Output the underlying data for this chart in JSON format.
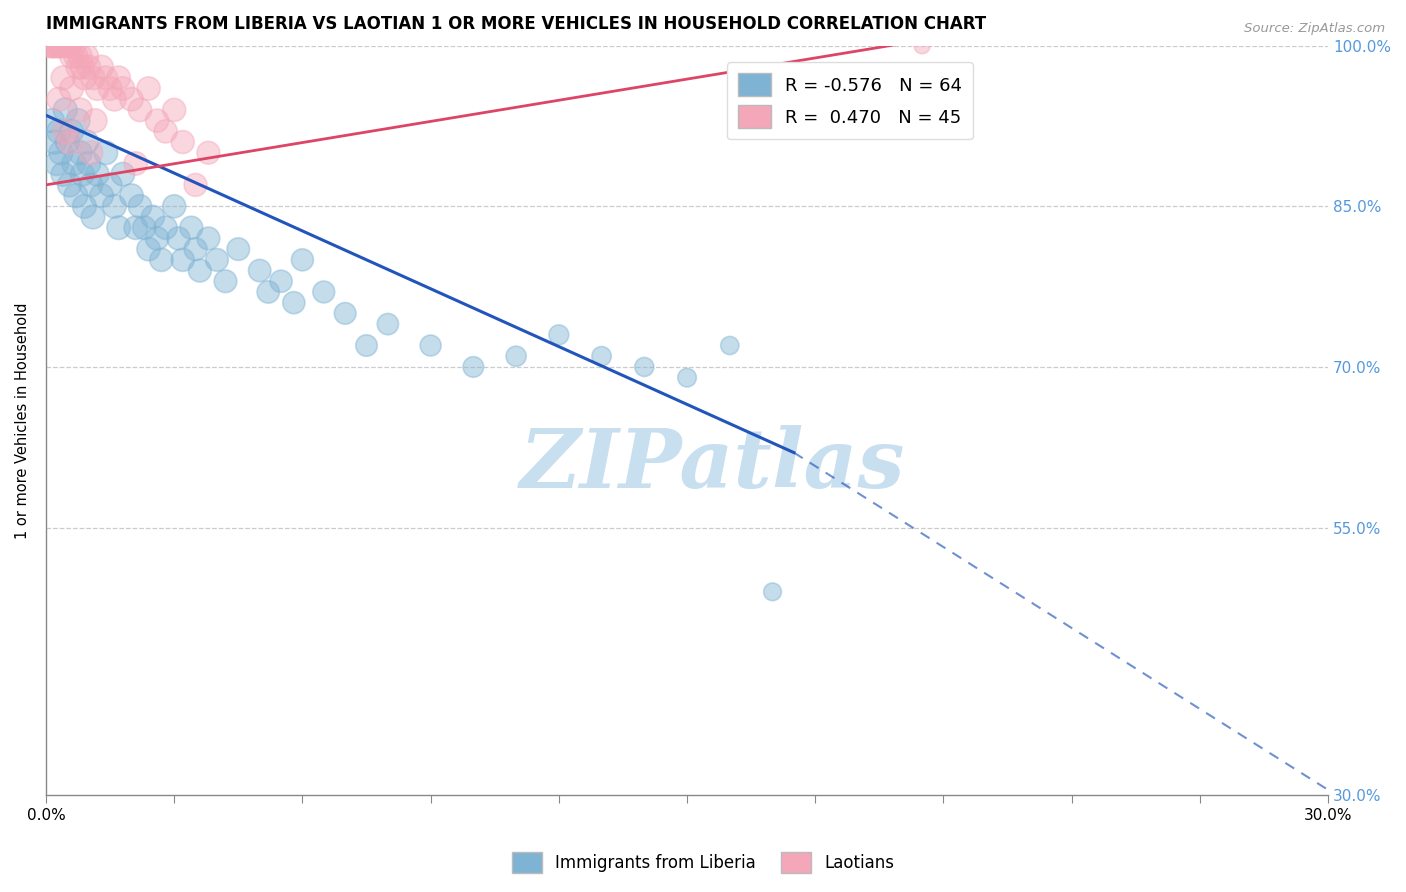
{
  "title": "IMMIGRANTS FROM LIBERIA VS LAOTIAN 1 OR MORE VEHICLES IN HOUSEHOLD CORRELATION CHART",
  "source": "Source: ZipAtlas.com",
  "ylabel": "1 or more Vehicles in Household",
  "xlim": [
    0.0,
    30.0
  ],
  "ylim": [
    30.0,
    100.0
  ],
  "xticks": [
    0.0,
    3.0,
    6.0,
    9.0,
    12.0,
    15.0,
    18.0,
    21.0,
    24.0,
    27.0,
    30.0
  ],
  "xtick_labels_show": {
    "0.0": "0.0%",
    "30.0": "30.0%"
  },
  "ytick_vals": [
    30.0,
    55.0,
    70.0,
    85.0,
    100.0
  ],
  "ytick_labels": [
    "30.0%",
    "55.0%",
    "70.0%",
    "85.0%",
    "100.0%"
  ],
  "legend_blue_label": "Immigrants from Liberia",
  "legend_pink_label": "Laotians",
  "R_blue": -0.576,
  "N_blue": 64,
  "R_pink": 0.47,
  "N_pink": 45,
  "blue_color": "#7fb3d3",
  "pink_color": "#f4a7b9",
  "blue_line_color": "#2255bb",
  "pink_line_color": "#dd4466",
  "watermark_color": "#c8dff0",
  "blue_scatter": [
    [
      0.15,
      93
    ],
    [
      0.2,
      91
    ],
    [
      0.25,
      89
    ],
    [
      0.3,
      92
    ],
    [
      0.35,
      90
    ],
    [
      0.4,
      88
    ],
    [
      0.45,
      94
    ],
    [
      0.5,
      91
    ],
    [
      0.55,
      87
    ],
    [
      0.6,
      92
    ],
    [
      0.65,
      89
    ],
    [
      0.7,
      86
    ],
    [
      0.75,
      93
    ],
    [
      0.8,
      90
    ],
    [
      0.85,
      88
    ],
    [
      0.9,
      85
    ],
    [
      0.95,
      91
    ],
    [
      1.0,
      89
    ],
    [
      1.05,
      87
    ],
    [
      1.1,
      84
    ],
    [
      1.2,
      88
    ],
    [
      1.3,
      86
    ],
    [
      1.4,
      90
    ],
    [
      1.5,
      87
    ],
    [
      1.6,
      85
    ],
    [
      1.7,
      83
    ],
    [
      1.8,
      88
    ],
    [
      2.0,
      86
    ],
    [
      2.1,
      83
    ],
    [
      2.2,
      85
    ],
    [
      2.3,
      83
    ],
    [
      2.4,
      81
    ],
    [
      2.5,
      84
    ],
    [
      2.6,
      82
    ],
    [
      2.7,
      80
    ],
    [
      2.8,
      83
    ],
    [
      3.0,
      85
    ],
    [
      3.1,
      82
    ],
    [
      3.2,
      80
    ],
    [
      3.4,
      83
    ],
    [
      3.5,
      81
    ],
    [
      3.6,
      79
    ],
    [
      3.8,
      82
    ],
    [
      4.0,
      80
    ],
    [
      4.2,
      78
    ],
    [
      4.5,
      81
    ],
    [
      5.0,
      79
    ],
    [
      5.2,
      77
    ],
    [
      5.5,
      78
    ],
    [
      5.8,
      76
    ],
    [
      6.0,
      80
    ],
    [
      6.5,
      77
    ],
    [
      7.0,
      75
    ],
    [
      7.5,
      72
    ],
    [
      8.0,
      74
    ],
    [
      9.0,
      72
    ],
    [
      10.0,
      70
    ],
    [
      11.0,
      71
    ],
    [
      12.0,
      73
    ],
    [
      13.0,
      71
    ],
    [
      14.0,
      70
    ],
    [
      15.0,
      69
    ],
    [
      16.0,
      72
    ],
    [
      17.0,
      49
    ]
  ],
  "pink_scatter": [
    [
      0.1,
      100
    ],
    [
      0.15,
      100
    ],
    [
      0.2,
      100
    ],
    [
      0.25,
      100
    ],
    [
      0.3,
      100
    ],
    [
      0.35,
      100
    ],
    [
      0.4,
      100
    ],
    [
      0.5,
      100
    ],
    [
      0.55,
      100
    ],
    [
      0.6,
      99
    ],
    [
      0.65,
      100
    ],
    [
      0.7,
      99
    ],
    [
      0.75,
      98
    ],
    [
      0.8,
      99
    ],
    [
      0.85,
      98
    ],
    [
      0.9,
      97
    ],
    [
      0.95,
      99
    ],
    [
      1.0,
      98
    ],
    [
      1.1,
      97
    ],
    [
      1.2,
      96
    ],
    [
      1.3,
      98
    ],
    [
      1.4,
      97
    ],
    [
      1.5,
      96
    ],
    [
      1.6,
      95
    ],
    [
      1.7,
      97
    ],
    [
      1.8,
      96
    ],
    [
      2.0,
      95
    ],
    [
      2.2,
      94
    ],
    [
      2.4,
      96
    ],
    [
      2.6,
      93
    ],
    [
      2.8,
      92
    ],
    [
      3.0,
      94
    ],
    [
      3.2,
      91
    ],
    [
      3.5,
      87
    ],
    [
      0.45,
      92
    ],
    [
      0.55,
      91
    ],
    [
      1.05,
      90
    ],
    [
      1.15,
      93
    ],
    [
      2.1,
      89
    ],
    [
      0.3,
      95
    ],
    [
      0.4,
      97
    ],
    [
      0.6,
      96
    ],
    [
      0.8,
      94
    ],
    [
      3.8,
      90
    ],
    [
      20.5,
      100
    ]
  ],
  "blue_trend_x": [
    0.0,
    17.5,
    30.0
  ],
  "blue_trend_y": [
    93.5,
    62.0,
    30.5
  ],
  "blue_solid_end_x": 17.5,
  "pink_trend_x": [
    0.0,
    20.5
  ],
  "pink_trend_y": [
    87.0,
    100.5
  ]
}
